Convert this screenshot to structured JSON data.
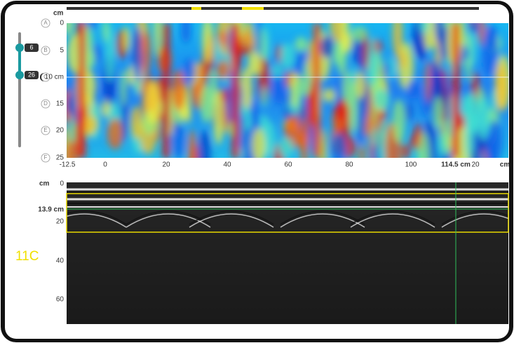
{
  "top_view": {
    "unit": "cm",
    "rows": [
      "A",
      "B",
      "C",
      "D",
      "E",
      "F"
    ],
    "depth_labels": [
      "0",
      "5",
      "10 cm",
      "15",
      "20",
      "25"
    ],
    "x_labels": [
      "-12.5",
      "0",
      "20",
      "40",
      "60",
      "80",
      "100",
      "114.5 cm",
      "20",
      "cm"
    ]
  },
  "slider": {
    "upper": "6",
    "lower": "26"
  },
  "bscan": {
    "unit": "cm",
    "depth_labels": [
      "0",
      "13.9 cm",
      "20",
      "40",
      "60"
    ]
  },
  "overlay_label": "11C"
}
